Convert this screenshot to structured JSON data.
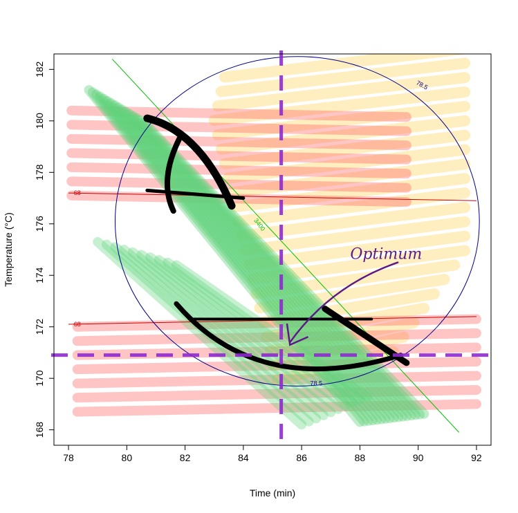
{
  "chart_data": {
    "type": "line",
    "subtype": "contour-overlay",
    "title": "",
    "xlabel": "Time (min)",
    "ylabel": "Temperature (°C)",
    "xlim": [
      77.5,
      92.5
    ],
    "ylim": [
      167.4,
      182.6
    ],
    "xticks": [
      78,
      80,
      82,
      84,
      86,
      88,
      90,
      92
    ],
    "yticks": [
      168,
      170,
      172,
      174,
      176,
      178,
      180,
      182
    ],
    "grid": false,
    "colors": {
      "red_contour": "#cc0000",
      "green_contour": "#00c000",
      "blue_contour": "#00008b",
      "red_band": "#ff6b6b",
      "green_band": "#5fd37a",
      "yellow_band": "#ffd970",
      "optimum": "#8e2bd1",
      "ink": "#000000",
      "annotation": "#5b1a86"
    },
    "contours": [
      {
        "label": "68",
        "color": "#cc0000",
        "points": [
          [
            78.0,
            177.2
          ],
          [
            92.0,
            176.9
          ]
        ]
      },
      {
        "label": "68",
        "color": "#cc0000",
        "points": [
          [
            78.0,
            172.1
          ],
          [
            92.0,
            172.4
          ]
        ]
      },
      {
        "label": "3400",
        "color": "#00c000",
        "points": [
          [
            79.5,
            182.4
          ],
          [
            91.4,
            167.9
          ]
        ]
      },
      {
        "label": "78.5",
        "color": "#00008b",
        "center": [
          85.85,
          176.1
        ],
        "radius_x": 6.25,
        "radius_y": 6.4
      }
    ],
    "optimum": {
      "x": 85.3,
      "y": 170.9
    },
    "annotations": [
      {
        "label": "Optimum",
        "x": 88.9,
        "y": 174.8
      }
    ]
  }
}
